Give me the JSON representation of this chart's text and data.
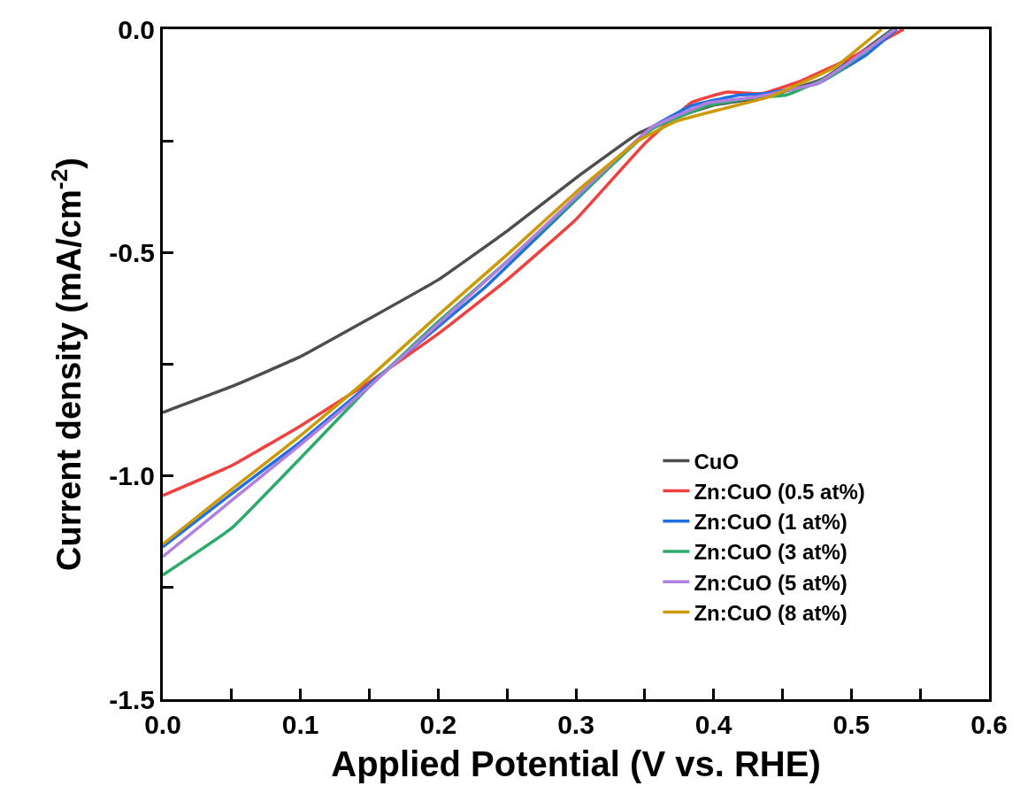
{
  "chart_data": {
    "type": "line",
    "xlabel": "Applied Potential (V vs. RHE)",
    "ylabel": "Current density (mA/cm$^{-2}$)",
    "xlim": [
      0,
      0.6
    ],
    "ylim": [
      -1.5,
      0
    ],
    "xticks": [
      {
        "value": 0,
        "label": "0.0"
      },
      {
        "value": 0.05,
        "label": null
      },
      {
        "value": 0.1,
        "label": "0.1"
      },
      {
        "value": 0.15,
        "label": null
      },
      {
        "value": 0.2,
        "label": "0.2"
      },
      {
        "value": 0.25,
        "label": null
      },
      {
        "value": 0.3,
        "label": "0.3"
      },
      {
        "value": 0.35,
        "label": null
      },
      {
        "value": 0.4,
        "label": "0.4"
      },
      {
        "value": 0.45,
        "label": null
      },
      {
        "value": 0.5,
        "label": "0.5"
      },
      {
        "value": 0.55,
        "label": null
      },
      {
        "value": 0.6,
        "label": "0.6"
      }
    ],
    "yticks": [
      {
        "value": -1.5,
        "label": "-1.5"
      },
      {
        "value": -1.25,
        "label": null
      },
      {
        "value": -1,
        "label": "-1.0"
      },
      {
        "value": -0.75,
        "label": null
      },
      {
        "value": -0.5,
        "label": "-0.5"
      },
      {
        "value": -0.25,
        "label": null
      },
      {
        "value": 0,
        "label": "0.0"
      }
    ],
    "grid": false,
    "legend": "bottom right",
    "line_style": "solid",
    "marker": "none",
    "series": [
      {
        "name": "CuO",
        "color": "#4d4d4d",
        "x": [
          0,
          0.05,
          0.1,
          0.15,
          0.2,
          0.25,
          0.3,
          0.345,
          0.37,
          0.4,
          0.44,
          0.48,
          0.53
        ],
        "values": [
          -0.858,
          -0.8,
          -0.733,
          -0.648,
          -0.561,
          -0.452,
          -0.333,
          -0.234,
          -0.2,
          -0.17,
          -0.15,
          -0.11,
          0
        ]
      },
      {
        "name": "Zn:CuO (0.5 at%)",
        "color": "#f04040",
        "x": [
          0,
          0.05,
          0.1,
          0.15,
          0.2,
          0.25,
          0.3,
          0.35,
          0.384,
          0.409,
          0.435,
          0.464,
          0.499,
          0.538
        ],
        "values": [
          -1.044,
          -0.977,
          -0.888,
          -0.79,
          -0.682,
          -0.561,
          -0.426,
          -0.256,
          -0.164,
          -0.141,
          -0.144,
          -0.115,
          -0.065,
          0
        ]
      },
      {
        "name": "Zn:CuO (1 at%)",
        "color": "#1f6fe0",
        "x": [
          0,
          0.05,
          0.1,
          0.15,
          0.2,
          0.235,
          0.3,
          0.355,
          0.384,
          0.419,
          0.435,
          0.476,
          0.511,
          0.533
        ],
        "values": [
          -1.159,
          -1.04,
          -0.924,
          -0.795,
          -0.666,
          -0.575,
          -0.382,
          -0.22,
          -0.171,
          -0.147,
          -0.145,
          -0.121,
          -0.057,
          0
        ]
      },
      {
        "name": "Zn:CuO (3 at%)",
        "color": "#2eaa6a",
        "x": [
          0,
          0.05,
          0.1,
          0.15,
          0.2,
          0.25,
          0.3,
          0.355,
          0.396,
          0.43,
          0.453,
          0.488,
          0.531
        ],
        "values": [
          -1.222,
          -1.117,
          -0.96,
          -0.8,
          -0.655,
          -0.52,
          -0.38,
          -0.224,
          -0.171,
          -0.153,
          -0.147,
          -0.1,
          0
        ]
      },
      {
        "name": "Zn:CuO (5 at%)",
        "color": "#b07fe0",
        "x": [
          0,
          0.05,
          0.1,
          0.15,
          0.2,
          0.25,
          0.3,
          0.355,
          0.396,
          0.43,
          0.476,
          0.532
        ],
        "values": [
          -1.181,
          -1.055,
          -0.93,
          -0.8,
          -0.66,
          -0.52,
          -0.375,
          -0.22,
          -0.165,
          -0.152,
          -0.12,
          0
        ]
      },
      {
        "name": "Zn:CuO (8 at%)",
        "color": "#cc9a06",
        "x": [
          0,
          0.05,
          0.1,
          0.15,
          0.2,
          0.25,
          0.3,
          0.345,
          0.373,
          0.407,
          0.441,
          0.488,
          0.522
        ],
        "values": [
          -1.153,
          -1.03,
          -0.91,
          -0.78,
          -0.64,
          -0.505,
          -0.365,
          -0.25,
          -0.206,
          -0.178,
          -0.151,
          -0.085,
          0
        ]
      }
    ]
  }
}
